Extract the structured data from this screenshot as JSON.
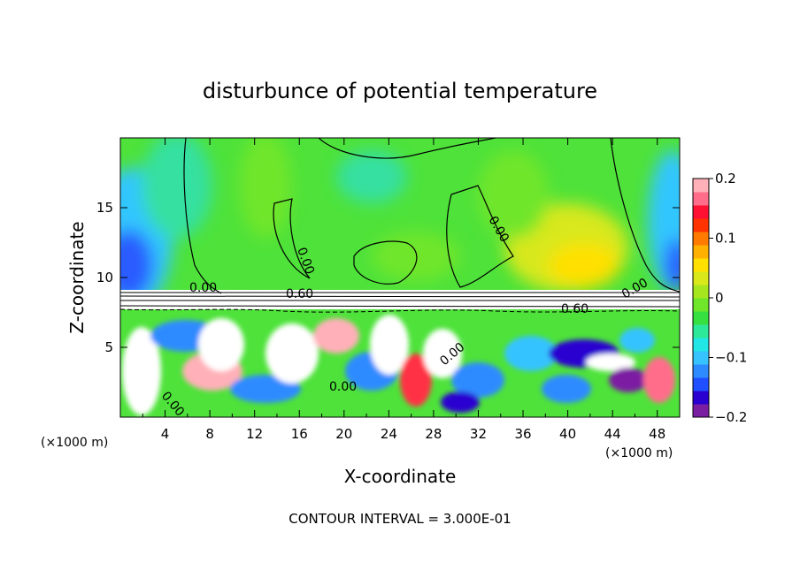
{
  "chart_data": {
    "type": "heatmap",
    "title": "disturbunce of potential temperature",
    "xlabel": "X-coordinate",
    "ylabel": "Z-coordinate",
    "x_unit": "(×1000 m)",
    "z_unit": "(×1000 m)",
    "xlim": [
      0,
      50
    ],
    "ylim": [
      0,
      20
    ],
    "x_ticks": [
      "4",
      "8",
      "12",
      "16",
      "20",
      "24",
      "28",
      "32",
      "36",
      "40",
      "44",
      "48"
    ],
    "y_ticks": [
      "5",
      "10",
      "15"
    ],
    "colorbar": {
      "range": [
        -0.2,
        0.2
      ],
      "tick_labels": [
        "0.2",
        "0.1",
        "0",
        "−0.1",
        "−0.2"
      ],
      "colors": [
        "#7b1fa2",
        "#2a00d0",
        "#1f4fff",
        "#2e8bff",
        "#36c3ff",
        "#22e6e6",
        "#2ee89a",
        "#36e040",
        "#6fe62a",
        "#a6e61e",
        "#d8e81a",
        "#ffe000",
        "#ffb000",
        "#ff7a00",
        "#ff3300",
        "#ff1133",
        "#ff6d8a",
        "#ffb0b8"
      ]
    },
    "contour_labels": [
      "0.60",
      "0.60",
      "0.00",
      "0.00",
      "0.00",
      "0.00",
      "0.00",
      "0.00",
      "0.00"
    ],
    "footer": "CONTOUR INTERVAL = 3.000E-01"
  }
}
